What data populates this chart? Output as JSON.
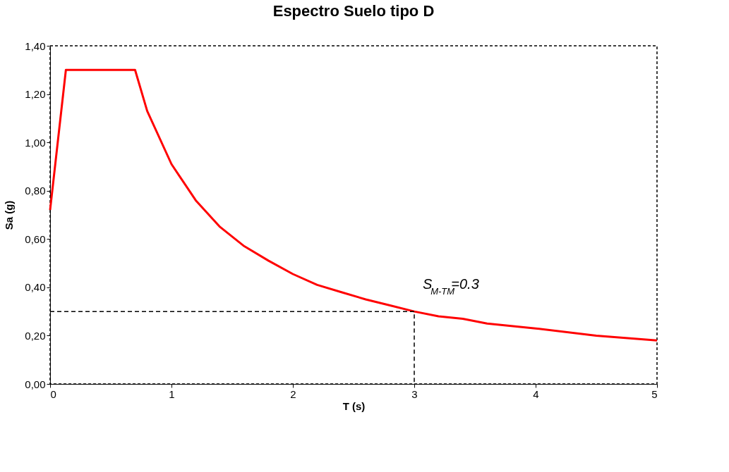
{
  "chart_data": {
    "type": "line",
    "title": "Espectro Suelo tipo D",
    "xlabel": "T (s)",
    "ylabel": "Sa (g)",
    "xlim": [
      0,
      5
    ],
    "xticks": [
      0,
      1,
      2,
      3,
      4,
      5
    ],
    "ylim": [
      0,
      1.4
    ],
    "yticks": [
      {
        "value": 0,
        "label": "0,00"
      },
      {
        "value": 0.2,
        "label": "0,20"
      },
      {
        "value": 0.4,
        "label": "0,40"
      },
      {
        "value": 0.6,
        "label": "0,60"
      },
      {
        "value": 0.8,
        "label": "0,80"
      },
      {
        "value": 1.0,
        "label": "1,00"
      },
      {
        "value": 1.2,
        "label": "1,20"
      },
      {
        "value": 1.4,
        "label": "1,40"
      }
    ],
    "grid": false,
    "marker": "none",
    "series": [
      {
        "color": "#ff0000",
        "line_style": "solid",
        "x": [
          0,
          0.13,
          0.7,
          0.8,
          1.0,
          1.2,
          1.4,
          1.6,
          1.8,
          2.0,
          2.2,
          2.4,
          2.6,
          2.8,
          3.0,
          3.2,
          3.4,
          3.6,
          3.8,
          4.0,
          4.5,
          5.0
        ],
        "values": [
          0.72,
          1.3,
          1.3,
          1.13,
          0.91,
          0.76,
          0.65,
          0.57,
          0.51,
          0.455,
          0.41,
          0.38,
          0.35,
          0.325,
          0.3,
          0.28,
          0.27,
          0.25,
          0.24,
          0.23,
          0.2,
          0.18
        ]
      },
      {
        "color": "#000000",
        "line_style": "dashed",
        "x": [
          0,
          3,
          3
        ],
        "values": [
          0.3,
          0.3,
          0
        ]
      }
    ],
    "annotations": [
      {
        "text": "S$_{M-TM}$=0.3",
        "x": 3,
        "y": 0.3
      }
    ]
  }
}
